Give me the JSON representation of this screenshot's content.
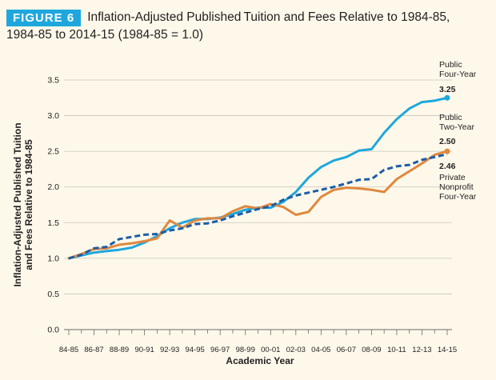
{
  "figure": {
    "badge": "FIGURE 6",
    "title_line1": "Inflation-Adjusted Published Tuition and Fees Relative to 1984-85,",
    "title_line2": "1984-85 to 2014-15 (1984-85 = 1.0)"
  },
  "colors": {
    "public_four_year": "#1fa7dd",
    "public_two_year": "#e0883e",
    "private_nonprofit": "#1d5da8",
    "background": "#fdf8ea",
    "badge": "#1fa7dd"
  },
  "chart_data": {
    "type": "line",
    "xlabel": "Academic Year",
    "ylabel_line1": "Inflation-Adjusted Published Tuition",
    "ylabel_line2": "and Fees Relative to 1984-85",
    "ylim": [
      0,
      3.5
    ],
    "yticks": [
      "0.0",
      "0.5",
      "1.0",
      "1.5",
      "2.0",
      "2.5",
      "3.0",
      "3.5"
    ],
    "x": [
      "84-85",
      "85-86",
      "86-87",
      "87-88",
      "88-89",
      "89-90",
      "90-91",
      "91-92",
      "92-93",
      "93-94",
      "94-95",
      "95-96",
      "96-97",
      "97-98",
      "98-99",
      "99-00",
      "00-01",
      "01-02",
      "02-03",
      "03-04",
      "04-05",
      "05-06",
      "06-07",
      "07-08",
      "08-09",
      "09-10",
      "10-11",
      "11-12",
      "12-13",
      "13-14",
      "14-15"
    ],
    "xtick_labels": [
      "84-85",
      "86-87",
      "88-89",
      "90-91",
      "92-93",
      "94-95",
      "96-97",
      "98-99",
      "00-01",
      "02-03",
      "04-05",
      "06-07",
      "08-09",
      "10-11",
      "12-13",
      "14-15"
    ],
    "series": [
      {
        "name": "Public Four-Year",
        "label_lines": [
          "Public",
          "Four-Year"
        ],
        "end_label": "3.25",
        "style": "solid",
        "values": [
          1.0,
          1.04,
          1.08,
          1.1,
          1.12,
          1.15,
          1.22,
          1.31,
          1.42,
          1.5,
          1.55,
          1.55,
          1.57,
          1.62,
          1.68,
          1.71,
          1.71,
          1.79,
          1.93,
          2.13,
          2.28,
          2.37,
          2.42,
          2.51,
          2.53,
          2.76,
          2.95,
          3.1,
          3.19,
          3.21,
          3.25
        ]
      },
      {
        "name": "Public Two-Year",
        "label_lines": [
          "Public",
          "Two-Year"
        ],
        "end_label": "2.50",
        "style": "solid",
        "values": [
          1.0,
          1.06,
          1.13,
          1.14,
          1.19,
          1.21,
          1.24,
          1.28,
          1.53,
          1.43,
          1.53,
          1.56,
          1.56,
          1.66,
          1.73,
          1.7,
          1.76,
          1.72,
          1.61,
          1.65,
          1.86,
          1.96,
          1.99,
          1.98,
          1.96,
          1.93,
          2.11,
          2.22,
          2.33,
          2.45,
          2.5
        ]
      },
      {
        "name": "Private Nonprofit Four-Year",
        "label_lines": [
          "Private",
          "Nonprofit",
          "Four-Year"
        ],
        "end_label": "2.46",
        "style": "dashed",
        "values": [
          1.0,
          1.05,
          1.14,
          1.16,
          1.27,
          1.3,
          1.33,
          1.34,
          1.39,
          1.42,
          1.48,
          1.49,
          1.53,
          1.59,
          1.64,
          1.69,
          1.73,
          1.82,
          1.88,
          1.92,
          1.96,
          2.0,
          2.05,
          2.1,
          2.11,
          2.24,
          2.29,
          2.31,
          2.38,
          2.42,
          2.46
        ]
      }
    ]
  }
}
